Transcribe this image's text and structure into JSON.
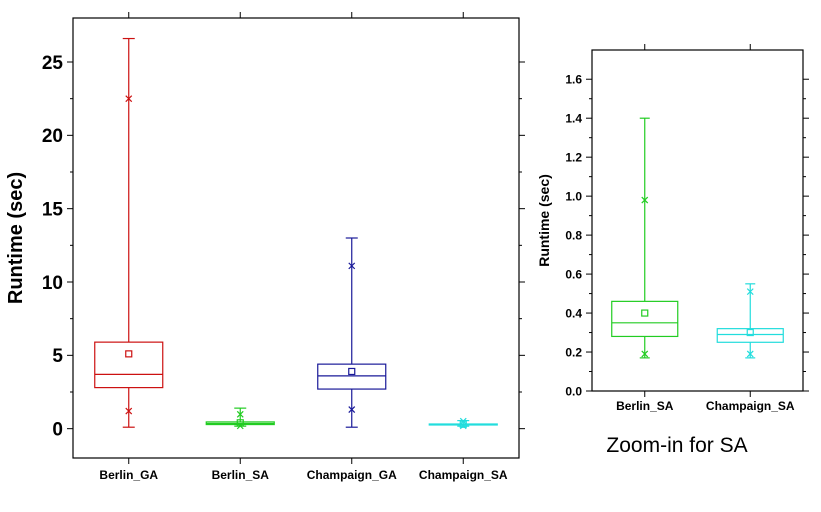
{
  "chart_data": [
    {
      "type": "box",
      "ylabel": "Runtime (sec)",
      "ylim": [
        -2,
        28
      ],
      "yticks": [
        0,
        5,
        10,
        15,
        20,
        25
      ],
      "categories": [
        "Berlin_GA",
        "Berlin_SA",
        "Champaign_GA",
        "Champaign_SA"
      ],
      "boxes": [
        {
          "name": "Berlin_GA",
          "color": "#cc1111",
          "min": 0.1,
          "p1": 1.2,
          "q1": 2.8,
          "median": 3.7,
          "mean": 5.1,
          "q3": 5.9,
          "p99": 22.5,
          "max": 26.6
        },
        {
          "name": "Berlin_SA",
          "color": "#22cc22",
          "min": 0.17,
          "p1": 0.19,
          "q1": 0.28,
          "median": 0.35,
          "mean": 0.4,
          "q3": 0.46,
          "p99": 0.98,
          "max": 1.4
        },
        {
          "name": "Champaign_GA",
          "color": "#1a1a99",
          "min": 0.1,
          "p1": 1.3,
          "q1": 2.7,
          "median": 3.6,
          "mean": 3.9,
          "q3": 4.4,
          "p99": 11.1,
          "max": 13.0
        },
        {
          "name": "Champaign_SA",
          "color": "#22dddd",
          "min": 0.17,
          "p1": 0.19,
          "q1": 0.25,
          "median": 0.29,
          "mean": 0.3,
          "q3": 0.32,
          "p99": 0.51,
          "max": 0.55
        }
      ]
    },
    {
      "type": "box",
      "ylabel": "Runtime (sec)",
      "ylim": [
        0,
        1.75
      ],
      "yticks": [
        "0.0",
        "0.2",
        "0.4",
        "0.6",
        "0.8",
        "1.0",
        "1.2",
        "1.4",
        "1.6"
      ],
      "categories": [
        "Berlin_SA",
        "Champaign_SA"
      ],
      "boxes": [
        {
          "name": "Berlin_SA",
          "color": "#22cc22",
          "min": 0.17,
          "p1": 0.19,
          "q1": 0.28,
          "median": 0.35,
          "mean": 0.4,
          "q3": 0.46,
          "p99": 0.98,
          "max": 1.4
        },
        {
          "name": "Champaign_SA",
          "color": "#22dddd",
          "min": 0.17,
          "p1": 0.19,
          "q1": 0.25,
          "median": 0.29,
          "mean": 0.3,
          "q3": 0.32,
          "p99": 0.51,
          "max": 0.55
        }
      ]
    }
  ],
  "caption": "Zoom-in for SA"
}
